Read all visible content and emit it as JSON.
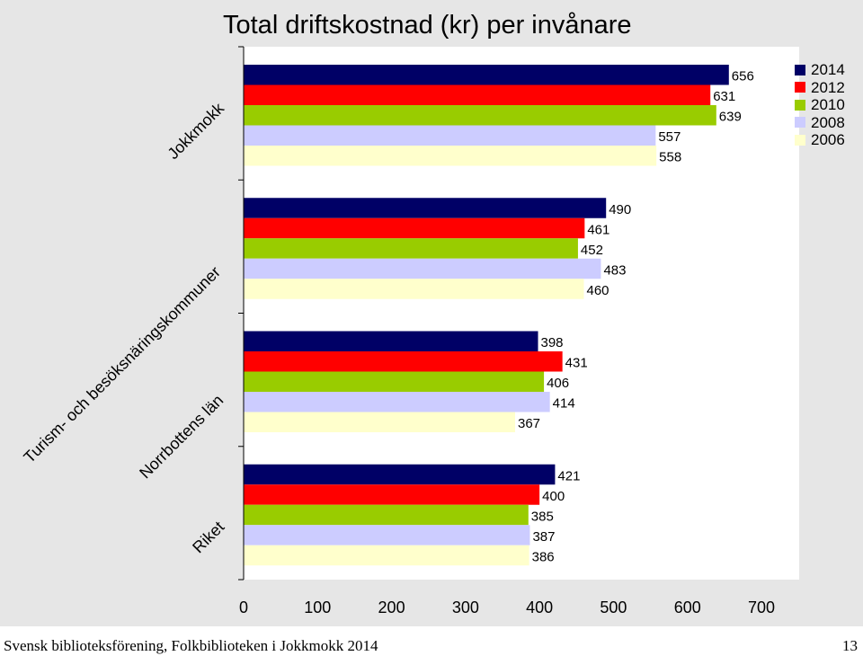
{
  "chart_data": {
    "type": "bar",
    "orientation": "horizontal",
    "title": "Total driftskostnad (kr) per invånare",
    "categories": [
      "Jokkmokk",
      "Turism- och besöksnäringskommuner",
      "Norrbottens län",
      "Riket"
    ],
    "series": [
      {
        "name": "2014",
        "color": "#000066",
        "values": [
          656,
          490,
          398,
          421
        ]
      },
      {
        "name": "2012",
        "color": "#ff0000",
        "values": [
          631,
          461,
          431,
          400
        ]
      },
      {
        "name": "2010",
        "color": "#99cc00",
        "values": [
          639,
          452,
          406,
          385
        ]
      },
      {
        "name": "2008",
        "color": "#ccccff",
        "values": [
          557,
          483,
          414,
          387
        ]
      },
      {
        "name": "2006",
        "color": "#ffffcc",
        "values": [
          558,
          460,
          367,
          386
        ]
      }
    ],
    "xlim": [
      0,
      700
    ],
    "x_ticks": [
      0,
      100,
      200,
      300,
      400,
      500,
      600,
      700
    ],
    "grid": false,
    "legend_position": "top-right"
  },
  "footer": {
    "source": "Svensk biblioteksförening, Folkbiblioteken i Jokkmokk 2014",
    "page_number": "13"
  }
}
